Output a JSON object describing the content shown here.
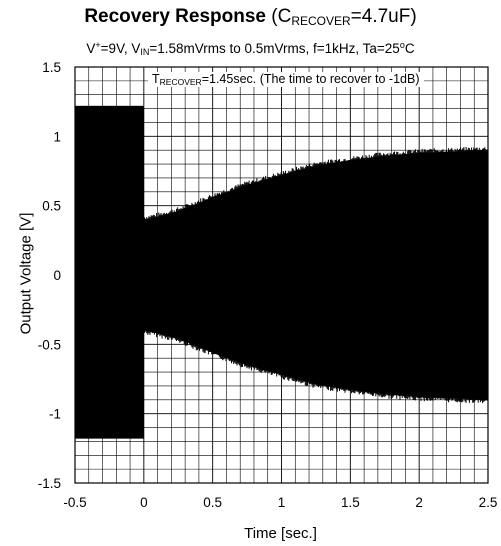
{
  "chart_data": {
    "type": "line",
    "title": {
      "main": "Recovery Response",
      "open": " (C",
      "sub": "RECOVER",
      "rest": "=4.7uF)"
    },
    "subtitle": {
      "a": "V",
      "a_sup": "+",
      "b": "=9V, V",
      "b_sub": "IN",
      "c": "=1.58mVrms to 0.5mVrms, f=1kHz, Ta=25",
      "c_sup": "o",
      "d": "C"
    },
    "annotation": {
      "a": "T",
      "a_sub": "RECOVER",
      "b": "=1.45sec. (The time to recover to -1dB)"
    },
    "xlabel": "Time [sec.]",
    "ylabel": "Output Voltage [V]",
    "xlim": [
      -0.5,
      2.5
    ],
    "ylim": [
      -1.5,
      1.5
    ],
    "x_ticks": [
      "-0.5",
      "0",
      "0.5",
      "1",
      "1.5",
      "2",
      "2.5"
    ],
    "y_ticks": [
      "1.5",
      "1",
      "0.5",
      "0",
      "-0.5",
      "-1",
      "-1.5"
    ],
    "grid": true,
    "colors": {
      "signal": "#000000",
      "grid": "#000000"
    },
    "series": [
      {
        "x": [
          -0.5,
          0.0,
          0.0,
          0.1,
          0.25,
          0.5,
          0.75,
          1.0,
          1.25,
          1.45,
          1.75,
          2.0,
          2.25,
          2.5
        ],
        "upper": [
          1.22,
          1.22,
          0.4,
          0.42,
          0.46,
          0.56,
          0.65,
          0.72,
          0.79,
          0.82,
          0.86,
          0.88,
          0.89,
          0.9
        ],
        "lower": [
          -1.18,
          -1.18,
          -0.4,
          -0.42,
          -0.46,
          -0.56,
          -0.65,
          -0.72,
          -0.79,
          -0.82,
          -0.86,
          -0.88,
          -0.89,
          -0.9
        ]
      }
    ]
  }
}
